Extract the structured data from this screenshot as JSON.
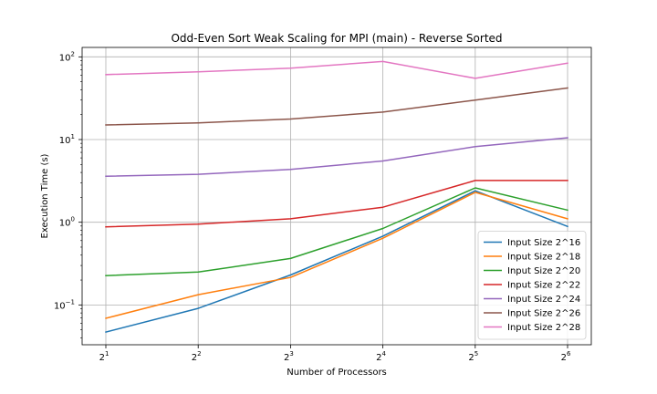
{
  "chart_data": {
    "type": "line",
    "title": "Odd-Even Sort Weak Scaling for MPI (main) - Reverse Sorted",
    "xlabel": "Number of Processors",
    "ylabel": "Execution Time (s)",
    "yscale": "log",
    "ylim": [
      0.033,
      130
    ],
    "xlim": [
      1,
      6
    ],
    "grid": true,
    "legend_position": "lower-right",
    "x": [
      1,
      2,
      3,
      4,
      5,
      6
    ],
    "x_tick_labels": [
      {
        "base": "2",
        "exp": "1"
      },
      {
        "base": "2",
        "exp": "2"
      },
      {
        "base": "2",
        "exp": "3"
      },
      {
        "base": "2",
        "exp": "4"
      },
      {
        "base": "2",
        "exp": "5"
      },
      {
        "base": "2",
        "exp": "6"
      }
    ],
    "y_ticks": [
      {
        "value": 0.1,
        "base": "10",
        "exp": "−1"
      },
      {
        "value": 1,
        "base": "10",
        "exp": "0"
      },
      {
        "value": 10,
        "base": "10",
        "exp": "1"
      },
      {
        "value": 100,
        "base": "10",
        "exp": "2"
      }
    ],
    "series": [
      {
        "name": "Input Size 2^16",
        "color": "#1f77b4",
        "values": [
          0.047,
          0.091,
          0.23,
          0.68,
          2.4,
          0.89
        ]
      },
      {
        "name": "Input Size 2^18",
        "color": "#ff7f0e",
        "values": [
          0.069,
          0.133,
          0.215,
          0.64,
          2.3,
          1.1
        ]
      },
      {
        "name": "Input Size 2^20",
        "color": "#2ca02c",
        "values": [
          0.226,
          0.25,
          0.365,
          0.84,
          2.6,
          1.4
        ]
      },
      {
        "name": "Input Size 2^22",
        "color": "#d62728",
        "values": [
          0.88,
          0.95,
          1.1,
          1.52,
          3.2,
          3.2
        ]
      },
      {
        "name": "Input Size 2^24",
        "color": "#9467bd",
        "values": [
          3.6,
          3.8,
          4.35,
          5.5,
          8.2,
          10.5
        ]
      },
      {
        "name": "Input Size 2^26",
        "color": "#8c564b",
        "values": [
          15.0,
          15.9,
          17.7,
          21.5,
          30.0,
          42.0
        ]
      },
      {
        "name": "Input Size 2^28",
        "color": "#e377c2",
        "values": [
          61,
          66,
          73,
          88,
          55,
          84
        ]
      }
    ]
  }
}
